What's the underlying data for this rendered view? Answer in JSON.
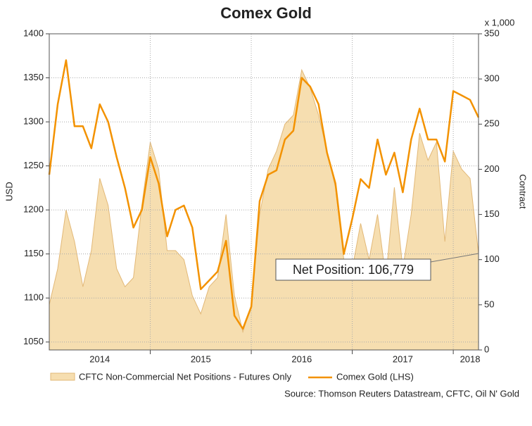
{
  "chart_data": {
    "type": "line",
    "title": "Comex Gold",
    "ylabel": "USD",
    "y2label": "Contract",
    "y2unit": "x 1,000",
    "source": "Source: Thomson Reuters Datastream, CFTC, Oil N' Gold",
    "annotation": "Net Position: 106,779",
    "categories": [
      null,
      null,
      null,
      null,
      null,
      null,
      "2014",
      null,
      null,
      null,
      null,
      null,
      null,
      null,
      null,
      null,
      null,
      null,
      "2015",
      null,
      null,
      null,
      null,
      null,
      null,
      null,
      null,
      null,
      null,
      null,
      "2016",
      null,
      null,
      null,
      null,
      null,
      null,
      null,
      null,
      null,
      null,
      null,
      "2017",
      null,
      null,
      null,
      null,
      null,
      null,
      null,
      "2018",
      null
    ],
    "series": [
      {
        "name": "CFTC Non-Commercial Net Positions - Futures Only",
        "kind": "area",
        "axis": "y2",
        "color": "#f6deb0",
        "values": [
          50,
          90,
          155,
          120,
          70,
          110,
          190,
          160,
          90,
          70,
          80,
          160,
          230,
          200,
          110,
          110,
          100,
          60,
          40,
          70,
          80,
          150,
          60,
          20,
          50,
          150,
          200,
          220,
          250,
          260,
          310,
          290,
          260,
          220,
          180,
          100,
          90,
          140,
          100,
          150,
          80,
          180,
          90,
          150,
          240,
          210,
          230,
          120,
          220,
          200,
          190,
          106.779
        ]
      },
      {
        "name": "Comex Gold (LHS)",
        "kind": "line",
        "axis": "y",
        "color": "#f39200",
        "values": [
          1240,
          1320,
          1370,
          1295,
          1295,
          1270,
          1320,
          1300,
          1260,
          1225,
          1180,
          1200,
          1260,
          1230,
          1170,
          1200,
          1205,
          1180,
          1110,
          1120,
          1130,
          1165,
          1080,
          1065,
          1090,
          1210,
          1240,
          1245,
          1280,
          1290,
          1350,
          1340,
          1320,
          1265,
          1230,
          1150,
          1190,
          1235,
          1225,
          1280,
          1240,
          1265,
          1220,
          1280,
          1315,
          1280,
          1280,
          1255,
          1335,
          1330,
          1325,
          1305
        ]
      }
    ],
    "ylim": [
      1041,
      1400
    ],
    "yticks": [
      1050,
      1100,
      1150,
      1200,
      1250,
      1300,
      1350,
      1400
    ],
    "y2lim": [
      0,
      350
    ],
    "y2ticks": [
      0,
      50,
      100,
      150,
      200,
      250,
      300,
      350
    ],
    "grid": true
  }
}
